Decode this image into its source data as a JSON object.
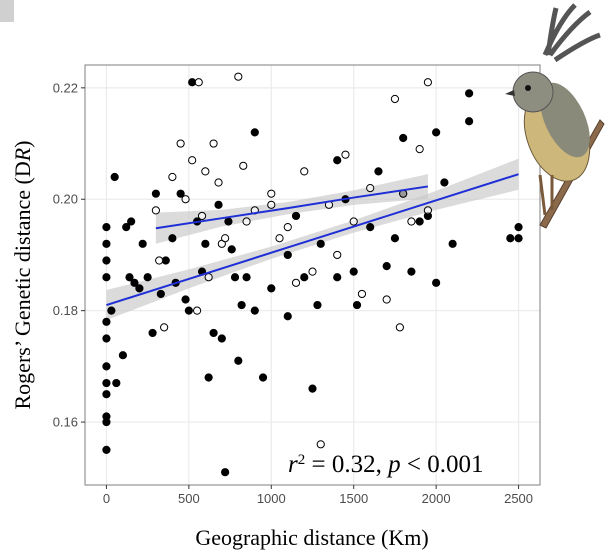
{
  "chart_data": {
    "type": "scatter",
    "x_label": "Geographic distance (Km)",
    "y_label": [
      "Rogers’ Genetic distance (D",
      "R",
      ")"
    ],
    "annotation": [
      "r",
      "2",
      " = 0.32, ",
      "p",
      " < 0.001"
    ],
    "xlim": [
      -130,
      2630
    ],
    "ylim": [
      0.1487,
      0.2241
    ],
    "xticks": [
      0,
      500,
      1000,
      1500,
      2000,
      2500
    ],
    "yticks": [
      0.16,
      0.18,
      {
        "value": 0.2,
        "label": "0.20"
      },
      0.22
    ],
    "grid": true,
    "series": [
      {
        "color": "#000000",
        "marker": "filled",
        "x": [
          0,
          0,
          0,
          0,
          0,
          0,
          0,
          0,
          0,
          0,
          0,
          0,
          30,
          50,
          60,
          100,
          120,
          140,
          150,
          170,
          200,
          220,
          250,
          280,
          300,
          330,
          360,
          400,
          420,
          450,
          480,
          500,
          520,
          550,
          580,
          600,
          620,
          650,
          680,
          700,
          720,
          740,
          760,
          780,
          800,
          820,
          850,
          900,
          950,
          1000,
          1100,
          1150,
          1200,
          1250,
          1280,
          1300,
          1400,
          1450,
          1500,
          1520,
          1600,
          1650,
          1700,
          1750,
          1800,
          1850,
          1900,
          1950,
          2000,
          2050,
          2100,
          2200,
          2200,
          2450,
          2500,
          2500,
          1800,
          900,
          1400,
          1100,
          2000
        ],
        "values": [
          0.155,
          0.16,
          0.161,
          0.165,
          0.167,
          0.17,
          0.175,
          0.178,
          0.186,
          0.189,
          0.192,
          0.195,
          0.18,
          0.204,
          0.167,
          0.172,
          0.195,
          0.186,
          0.196,
          0.185,
          0.184,
          0.192,
          0.186,
          0.176,
          0.201,
          0.183,
          0.189,
          0.193,
          0.185,
          0.201,
          0.182,
          0.18,
          0.221,
          0.196,
          0.187,
          0.192,
          0.168,
          0.176,
          0.199,
          0.175,
          0.151,
          0.196,
          0.191,
          0.186,
          0.171,
          0.181,
          0.186,
          0.18,
          0.168,
          0.184,
          0.19,
          0.197,
          0.186,
          0.166,
          0.181,
          0.192,
          0.186,
          0.2,
          0.187,
          0.181,
          0.195,
          0.205,
          0.188,
          0.193,
          0.201,
          0.187,
          0.196,
          0.197,
          0.185,
          0.203,
          0.192,
          0.214,
          0.219,
          0.193,
          0.193,
          0.195,
          0.211,
          0.212,
          0.207,
          0.179,
          0.212
        ]
      },
      {
        "color": "#000000",
        "marker": "open",
        "x": [
          300,
          320,
          400,
          450,
          480,
          520,
          560,
          580,
          600,
          620,
          650,
          680,
          700,
          720,
          800,
          830,
          850,
          900,
          1000,
          1050,
          1100,
          1150,
          1200,
          1250,
          1300,
          1350,
          1400,
          1450,
          1500,
          1550,
          1600,
          1700,
          1750,
          1780,
          1800,
          1850,
          1900,
          1950,
          1950,
          350,
          550,
          1000
        ],
        "values": [
          0.198,
          0.189,
          0.204,
          0.21,
          0.2,
          0.207,
          0.221,
          0.197,
          0.205,
          0.186,
          0.21,
          0.203,
          0.192,
          0.193,
          0.222,
          0.206,
          0.196,
          0.198,
          0.201,
          0.193,
          0.195,
          0.185,
          0.205,
          0.187,
          0.156,
          0.199,
          0.19,
          0.208,
          0.196,
          0.183,
          0.202,
          0.182,
          0.218,
          0.177,
          0.201,
          0.196,
          0.209,
          0.221,
          0.198,
          0.177,
          0.18,
          0.199
        ]
      }
    ],
    "fits": [
      {
        "color": "#1f2fd6",
        "band_color": "#c8c8c8",
        "x": [
          0,
          500,
          1000,
          1500,
          2000,
          2500
        ],
        "values": [
          0.181,
          0.1857,
          0.1904,
          0.1951,
          0.1998,
          0.2045
        ],
        "band_lower": [
          0.1783,
          0.184,
          0.1893,
          0.194,
          0.1981,
          0.2017
        ],
        "band_upper": [
          0.1837,
          0.1874,
          0.1915,
          0.1962,
          0.2015,
          0.2073
        ]
      },
      {
        "color": "#1f2fd6",
        "band_color": "#c8c8c8",
        "x": [
          300,
          700,
          1100,
          1500,
          1950
        ],
        "values": [
          0.1948,
          0.1966,
          0.1984,
          0.2003,
          0.2023
        ],
        "band_lower": [
          0.192,
          0.1951,
          0.1973,
          0.199,
          0.2001
        ],
        "band_upper": [
          0.1976,
          0.1981,
          0.1995,
          0.2016,
          0.2045
        ]
      }
    ]
  }
}
